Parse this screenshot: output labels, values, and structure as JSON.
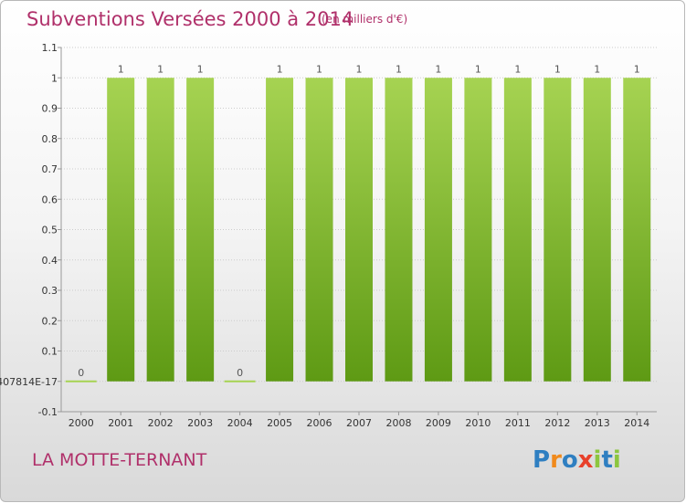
{
  "title": "Subventions Versées 2000 à 2014",
  "subtitle": "(en milliers d'€)",
  "commune": "LA MOTTE-TERNANT",
  "logo": {
    "text": "Proxiti",
    "letters": [
      {
        "ch": "P",
        "color": "#2f7fc1"
      },
      {
        "ch": "r",
        "color": "#f08a1c"
      },
      {
        "ch": "o",
        "color": "#2f7fc1"
      },
      {
        "ch": "x",
        "color": "#e8402a"
      },
      {
        "ch": "i",
        "color": "#8cc63f"
      },
      {
        "ch": "t",
        "color": "#2f7fc1"
      },
      {
        "ch": "i",
        "color": "#8cc63f"
      }
    ]
  },
  "colors": {
    "bar_top": "#a6d352",
    "bar_bottom": "#5e9a14",
    "text_accent": "#b0306a",
    "grid": "#cccccc",
    "axis": "#999999"
  },
  "chart_data": {
    "type": "bar",
    "categories": [
      "2000",
      "2001",
      "2002",
      "2003",
      "2004",
      "2005",
      "2006",
      "2007",
      "2008",
      "2009",
      "2010",
      "2011",
      "2012",
      "2013",
      "2014"
    ],
    "values": [
      0,
      1,
      1,
      1,
      0,
      1,
      1,
      1,
      1,
      1,
      1,
      1,
      1,
      1,
      1
    ],
    "data_labels": [
      "0",
      "1",
      "1",
      "1",
      "0",
      "1",
      "1",
      "1",
      "1",
      "1",
      "1",
      "1",
      "1",
      "1",
      "1"
    ],
    "ylim": [
      -0.1,
      1.1
    ],
    "y_ticks": [
      -0.1,
      0,
      0.1,
      0.2,
      0.3,
      0.4,
      0.5,
      0.6,
      0.7,
      0.8,
      0.9,
      1,
      1.1
    ],
    "y_tick_labels": [
      "-0.1",
      "407814E-17",
      "0.1",
      "0.2",
      "0.3",
      "0.4",
      "0.5",
      "0.6",
      "0.7",
      "0.8",
      "0.9",
      "1",
      "1.1"
    ],
    "grid": "horizontal",
    "legend": "none"
  }
}
